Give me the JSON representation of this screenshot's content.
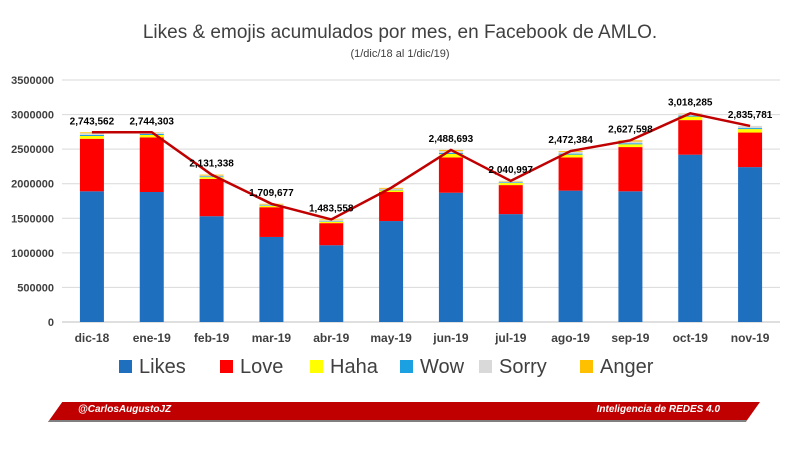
{
  "chart_data": {
    "type": "bar",
    "stacked": true,
    "title": "Likes & emojis acumulados por mes, en Facebook de AMLO.",
    "subtitle": "(1/dic/18 al 1/dic/19)",
    "categories": [
      "dic-18",
      "ene-19",
      "feb-19",
      "mar-19",
      "abr-19",
      "may-19",
      "jun-19",
      "jul-19",
      "ago-19",
      "sep-19",
      "oct-19",
      "nov-19"
    ],
    "ylim": [
      0,
      3500000
    ],
    "yticks": [
      "0",
      "500000",
      "1000000",
      "1500000",
      "2000000",
      "2500000",
      "3000000",
      "3500000"
    ],
    "grid": true,
    "legend_position": "bottom",
    "series": [
      {
        "name": "Likes",
        "color": "#1f6fbf",
        "values": [
          1890000,
          1880000,
          1530000,
          1230000,
          1110000,
          1460000,
          1870000,
          1560000,
          1900000,
          1890000,
          2420000,
          2240000
        ]
      },
      {
        "name": "Love",
        "color": "#ff0000",
        "values": [
          760000,
          790000,
          540000,
          430000,
          320000,
          420000,
          510000,
          420000,
          480000,
          640000,
          500000,
          500000
        ]
      },
      {
        "name": "Haha",
        "color": "#ffff00",
        "values": [
          40000,
          35000,
          25000,
          20000,
          20000,
          25000,
          50000,
          30000,
          40000,
          40000,
          50000,
          50000
        ]
      },
      {
        "name": "Wow",
        "color": "#1ba1e2",
        "values": [
          15000,
          15000,
          10000,
          8000,
          8000,
          8000,
          15000,
          10000,
          15000,
          15000,
          15000,
          15000
        ]
      },
      {
        "name": "Sorry",
        "color": "#d9d9d9",
        "values": [
          25000,
          20000,
          15000,
          12000,
          15000,
          15000,
          30000,
          15000,
          25000,
          25000,
          30000,
          30000
        ]
      },
      {
        "name": "Anger",
        "color": "#ffc000",
        "values": [
          13562,
          4303,
          11338,
          9677,
          10558,
          12000,
          13693,
          5997,
          12384,
          17598,
          3285,
          781
        ]
      }
    ],
    "total_line": {
      "color": "#c00000",
      "values": [
        2743562,
        2744303,
        2131338,
        1709677,
        1483558,
        1940000,
        2488693,
        2040997,
        2472384,
        2627598,
        3018285,
        2835781
      ],
      "labels": [
        "2,743,562",
        "2,744,303",
        "2,131,338",
        "1,709,677",
        "1,483,558",
        "",
        "2,488,693",
        "2,040,997",
        "2,472,384",
        "2,627,598",
        "3,018,285",
        "2,835,781"
      ]
    }
  },
  "footer": {
    "left": "@CarlosAugustoJZ",
    "right": "Inteligencia de REDES 4.0"
  }
}
